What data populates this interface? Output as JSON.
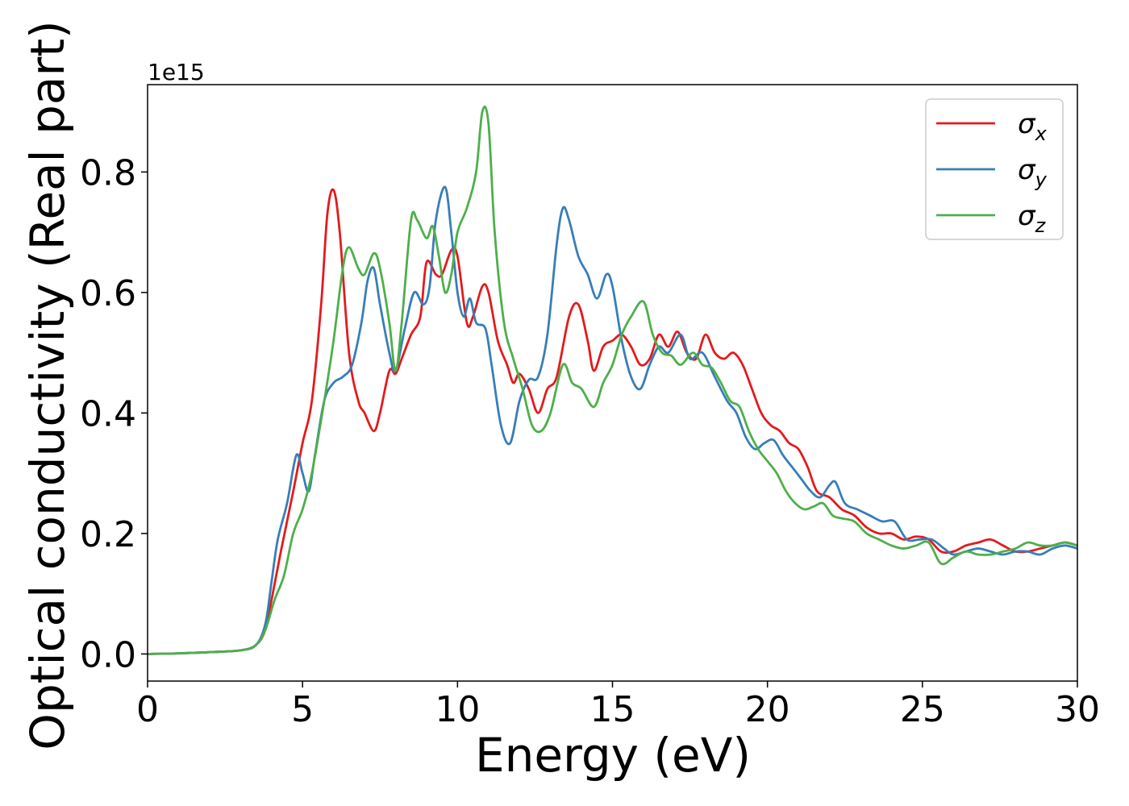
{
  "chart_data": {
    "type": "line",
    "xlabel": "Energy (eV)",
    "ylabel": "Optical conductivity (Real part)",
    "y_offset_text": "1e15",
    "xlim": [
      0,
      30
    ],
    "ylim": [
      -0.045,
      0.945
    ],
    "x_ticks": [
      0,
      5,
      10,
      15,
      20,
      25,
      30
    ],
    "x_tick_labels": [
      "0",
      "5",
      "10",
      "15",
      "20",
      "25",
      "30"
    ],
    "y_ticks": [
      0.0,
      0.2,
      0.4,
      0.6,
      0.8
    ],
    "y_tick_labels": [
      "0.0",
      "0.2",
      "0.4",
      "0.6",
      "0.8"
    ],
    "grid": false,
    "legend_position": "top-right",
    "series": [
      {
        "name": "σx",
        "symbol": "σ",
        "subscript": "x",
        "color": "#e41a1c",
        "x": [
          0,
          1,
          2,
          3,
          3.5,
          3.8,
          4.0,
          4.3,
          4.7,
          5.0,
          5.3,
          5.6,
          5.8,
          6.0,
          6.2,
          6.5,
          6.8,
          7.0,
          7.3,
          7.5,
          7.8,
          8.0,
          8.2,
          8.5,
          8.8,
          9.0,
          9.3,
          9.5,
          9.8,
          10.0,
          10.3,
          10.5,
          10.8,
          11.0,
          11.3,
          11.6,
          11.8,
          12.0,
          12.3,
          12.6,
          12.9,
          13.2,
          13.6,
          13.9,
          14.2,
          14.4,
          14.7,
          15.0,
          15.3,
          15.6,
          15.9,
          16.2,
          16.5,
          16.8,
          17.1,
          17.4,
          17.7,
          18.0,
          18.3,
          18.6,
          18.9,
          19.2,
          19.5,
          19.8,
          20.1,
          20.4,
          20.7,
          21.0,
          21.3,
          21.6,
          22.0,
          22.4,
          22.8,
          23.2,
          23.6,
          24.0,
          24.4,
          24.8,
          25.2,
          25.6,
          26.0,
          26.4,
          26.8,
          27.2,
          27.6,
          28.0,
          28.4,
          28.8,
          29.2,
          29.6,
          30.0
        ],
        "y": [
          0.0,
          0.001,
          0.003,
          0.006,
          0.015,
          0.04,
          0.09,
          0.17,
          0.27,
          0.35,
          0.42,
          0.58,
          0.73,
          0.77,
          0.7,
          0.5,
          0.42,
          0.4,
          0.37,
          0.4,
          0.47,
          0.465,
          0.49,
          0.53,
          0.56,
          0.65,
          0.63,
          0.63,
          0.67,
          0.66,
          0.55,
          0.56,
          0.61,
          0.6,
          0.52,
          0.48,
          0.45,
          0.465,
          0.44,
          0.4,
          0.44,
          0.46,
          0.56,
          0.58,
          0.52,
          0.47,
          0.51,
          0.52,
          0.53,
          0.51,
          0.48,
          0.49,
          0.53,
          0.51,
          0.535,
          0.5,
          0.49,
          0.53,
          0.5,
          0.49,
          0.5,
          0.48,
          0.44,
          0.4,
          0.38,
          0.37,
          0.35,
          0.34,
          0.31,
          0.27,
          0.26,
          0.24,
          0.23,
          0.21,
          0.2,
          0.2,
          0.19,
          0.195,
          0.19,
          0.17,
          0.17,
          0.18,
          0.185,
          0.19,
          0.18,
          0.17,
          0.17,
          0.175,
          0.18,
          0.185,
          0.18
        ]
      },
      {
        "name": "σy",
        "symbol": "σ",
        "subscript": "y",
        "color": "#377eb8",
        "x": [
          0,
          1,
          2,
          3,
          3.5,
          3.8,
          4.0,
          4.2,
          4.5,
          4.8,
          5.0,
          5.2,
          5.4,
          5.7,
          6.0,
          6.3,
          6.6,
          6.9,
          7.1,
          7.3,
          7.5,
          7.8,
          8.0,
          8.3,
          8.6,
          8.9,
          9.1,
          9.3,
          9.6,
          9.8,
          10.0,
          10.2,
          10.4,
          10.6,
          10.9,
          11.1,
          11.4,
          11.7,
          12.0,
          12.3,
          12.6,
          12.9,
          13.2,
          13.4,
          13.6,
          13.9,
          14.2,
          14.5,
          14.8,
          15.0,
          15.3,
          15.6,
          15.9,
          16.2,
          16.5,
          16.8,
          17.2,
          17.5,
          17.9,
          18.3,
          18.7,
          19.0,
          19.3,
          19.6,
          19.9,
          20.2,
          20.5,
          20.8,
          21.1,
          21.4,
          21.7,
          22.0,
          22.2,
          22.5,
          22.9,
          23.3,
          23.7,
          24.1,
          24.5,
          24.9,
          25.3,
          25.7,
          26.0,
          26.4,
          26.8,
          27.2,
          27.6,
          28.0,
          28.4,
          28.8,
          29.2,
          29.6,
          30.0
        ],
        "y": [
          0.0,
          0.001,
          0.003,
          0.006,
          0.015,
          0.05,
          0.12,
          0.19,
          0.25,
          0.33,
          0.3,
          0.27,
          0.33,
          0.42,
          0.45,
          0.46,
          0.48,
          0.55,
          0.62,
          0.64,
          0.58,
          0.5,
          0.47,
          0.54,
          0.6,
          0.58,
          0.61,
          0.72,
          0.775,
          0.7,
          0.6,
          0.56,
          0.59,
          0.55,
          0.54,
          0.48,
          0.38,
          0.35,
          0.42,
          0.455,
          0.46,
          0.53,
          0.68,
          0.74,
          0.72,
          0.66,
          0.63,
          0.59,
          0.63,
          0.61,
          0.52,
          0.46,
          0.44,
          0.48,
          0.51,
          0.5,
          0.53,
          0.49,
          0.5,
          0.46,
          0.42,
          0.4,
          0.36,
          0.34,
          0.35,
          0.355,
          0.33,
          0.31,
          0.29,
          0.27,
          0.26,
          0.28,
          0.285,
          0.25,
          0.24,
          0.23,
          0.22,
          0.22,
          0.19,
          0.19,
          0.19,
          0.175,
          0.165,
          0.17,
          0.175,
          0.17,
          0.165,
          0.17,
          0.17,
          0.165,
          0.175,
          0.18,
          0.175
        ]
      },
      {
        "name": "σz",
        "symbol": "σ",
        "subscript": "z",
        "color": "#4daf4a",
        "x": [
          0,
          1,
          2,
          3,
          3.5,
          3.8,
          4.1,
          4.4,
          4.7,
          5.0,
          5.3,
          5.7,
          6.0,
          6.3,
          6.5,
          6.8,
          7.0,
          7.3,
          7.5,
          7.8,
          8.0,
          8.2,
          8.5,
          8.7,
          9.0,
          9.2,
          9.4,
          9.6,
          9.8,
          10.0,
          10.3,
          10.6,
          10.8,
          11.0,
          11.2,
          11.5,
          11.8,
          12.1,
          12.4,
          12.7,
          13.0,
          13.4,
          13.7,
          14.0,
          14.4,
          14.7,
          15.0,
          15.3,
          15.6,
          16.0,
          16.3,
          16.6,
          16.9,
          17.2,
          17.6,
          17.9,
          18.2,
          18.5,
          18.8,
          19.1,
          19.4,
          19.7,
          20.0,
          20.3,
          20.6,
          20.9,
          21.2,
          21.5,
          21.8,
          22.1,
          22.4,
          22.8,
          23.2,
          23.6,
          24.0,
          24.4,
          24.8,
          25.2,
          25.6,
          26.0,
          26.4,
          26.8,
          27.2,
          27.6,
          28.0,
          28.4,
          28.8,
          29.2,
          29.6,
          30.0
        ],
        "y": [
          0.0,
          0.001,
          0.003,
          0.006,
          0.015,
          0.04,
          0.09,
          0.13,
          0.2,
          0.24,
          0.3,
          0.42,
          0.52,
          0.64,
          0.675,
          0.64,
          0.63,
          0.665,
          0.64,
          0.55,
          0.47,
          0.55,
          0.72,
          0.72,
          0.69,
          0.71,
          0.66,
          0.6,
          0.63,
          0.7,
          0.74,
          0.8,
          0.9,
          0.88,
          0.7,
          0.55,
          0.49,
          0.44,
          0.38,
          0.37,
          0.4,
          0.48,
          0.45,
          0.44,
          0.41,
          0.45,
          0.48,
          0.53,
          0.56,
          0.585,
          0.53,
          0.5,
          0.495,
          0.48,
          0.5,
          0.48,
          0.475,
          0.45,
          0.42,
          0.41,
          0.37,
          0.34,
          0.32,
          0.3,
          0.27,
          0.25,
          0.24,
          0.245,
          0.25,
          0.23,
          0.225,
          0.22,
          0.2,
          0.19,
          0.18,
          0.175,
          0.18,
          0.185,
          0.15,
          0.16,
          0.17,
          0.165,
          0.165,
          0.17,
          0.175,
          0.185,
          0.18,
          0.18,
          0.185,
          0.18
        ]
      }
    ]
  }
}
